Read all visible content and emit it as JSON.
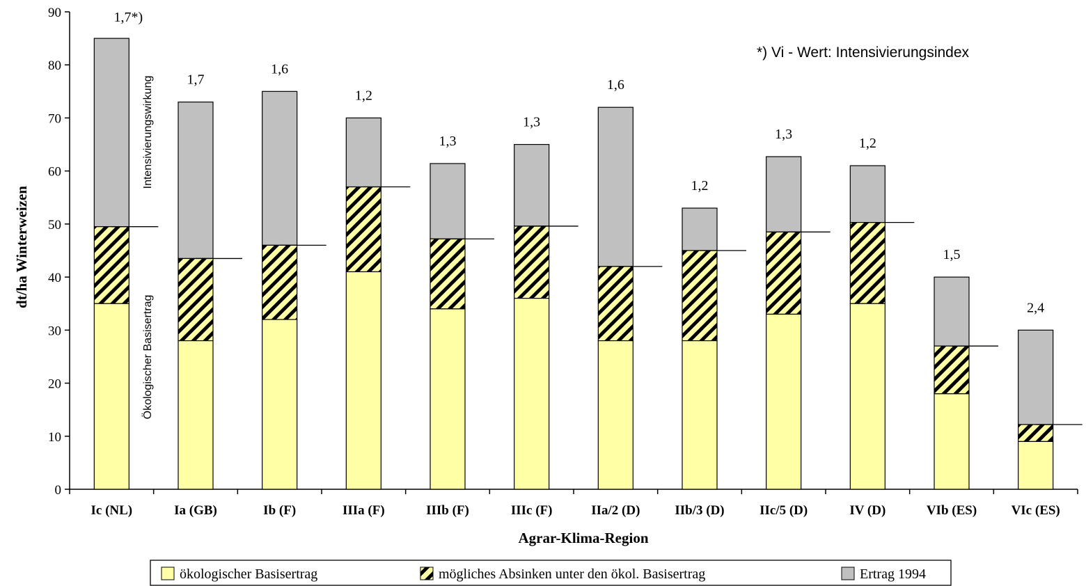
{
  "chart_data": {
    "type": "bar",
    "stacked": true,
    "categories": [
      "Ic (NL)",
      "Ia (GB)",
      "Ib (F)",
      "IIIa (F)",
      "IIIb (F)",
      "IIIc (F)",
      "IIa/2 (D)",
      "IIb/3 (D)",
      "IIc/5 (D)",
      "IV (D)",
      "VIb (ES)",
      "VIc (ES)"
    ],
    "series": [
      {
        "name": "ökologischer Basisertrag",
        "values": [
          35,
          28,
          32,
          41,
          34,
          36,
          28,
          28,
          33,
          35,
          18,
          9
        ]
      },
      {
        "name": "mögliches Absinken unter den ökol. Basisertrag",
        "values": [
          14.5,
          15.5,
          14,
          16,
          13.2,
          13.6,
          14,
          17,
          15.5,
          15.3,
          9,
          3.2
        ]
      },
      {
        "name": "Ertrag 1994",
        "values": [
          35.5,
          29.5,
          29,
          13,
          14.2,
          15.4,
          30,
          8,
          14.2,
          10.7,
          13,
          17.8
        ]
      }
    ],
    "totals": [
      85,
      73,
      75,
      70,
      61.4,
      65,
      72,
      53,
      62.7,
      61,
      40,
      30
    ],
    "vi_labels": [
      "1,7*)",
      "1,7",
      "1,6",
      "1,2",
      "1,3",
      "1,3",
      "1,6",
      "1,2",
      "1,3",
      "1,2",
      "1,5",
      "2,4"
    ],
    "xlabel": "Agrar-Klima-Region",
    "ylabel": "dt/ha Winterweizen",
    "ylim": [
      0,
      90
    ],
    "yticks": [
      0,
      10,
      20,
      30,
      40,
      50,
      60,
      70,
      80,
      90
    ],
    "footnote": "*) Vi - Wert: Intensivierungsindex",
    "annotations": {
      "upper": "Intensivierungswirkung",
      "lower": "Ökologischer Basisertrag"
    },
    "legend_position": "bottom",
    "grid": false,
    "colors": {
      "base": "#ffffa6",
      "hatch_fg": "#000000",
      "hatch_bg": "#ffffa6",
      "yield": "#c0c0c0"
    }
  }
}
